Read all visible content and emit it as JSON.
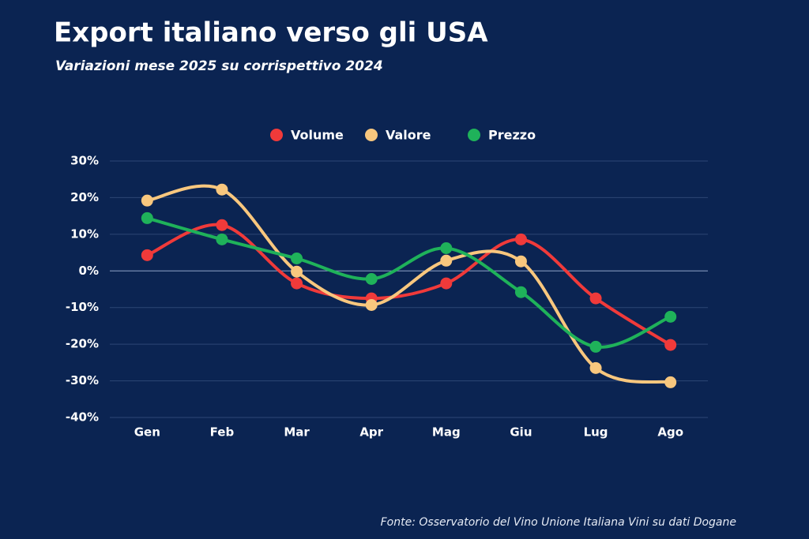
{
  "chart_data": {
    "type": "line",
    "title": "Export italiano verso gli USA",
    "subtitle": "Variazioni mese 2025 su corrispettivo 2024",
    "source": "Fonte: Osservatorio del Vino Unione Italiana Vini su dati Dogane",
    "categories": [
      "Gen",
      "Feb",
      "Mar",
      "Apr",
      "Mag",
      "Giu",
      "Lug",
      "Ago"
    ],
    "series": [
      {
        "name": "Volume",
        "color": "#f03a3a",
        "values": [
          4.3,
          12.5,
          -3.4,
          -7.5,
          -3.4,
          8.6,
          -7.5,
          -20.2
        ]
      },
      {
        "name": "Valore",
        "color": "#f8c77e",
        "values": [
          19.2,
          22.2,
          -0.2,
          -9.3,
          2.8,
          2.6,
          -26.5,
          -30.4
        ]
      },
      {
        "name": "Prezzo",
        "color": "#1fb25a",
        "values": [
          14.4,
          8.6,
          3.4,
          -2.2,
          6.2,
          -5.8,
          -20.7,
          -12.5
        ]
      }
    ],
    "ylim": [
      -40,
      30
    ],
    "yticks": [
      {
        "value": -40,
        "label": "-40%"
      },
      {
        "value": -30,
        "label": "-30%"
      },
      {
        "value": -20,
        "label": "-20%"
      },
      {
        "value": -10,
        "label": "-10%"
      },
      {
        "value": 0,
        "label": "0%"
      },
      {
        "value": 10,
        "label": "10%"
      },
      {
        "value": 20,
        "label": "20%"
      },
      {
        "value": 30,
        "label": "30%"
      }
    ],
    "grid": true,
    "smooth": true,
    "legend": "top"
  }
}
